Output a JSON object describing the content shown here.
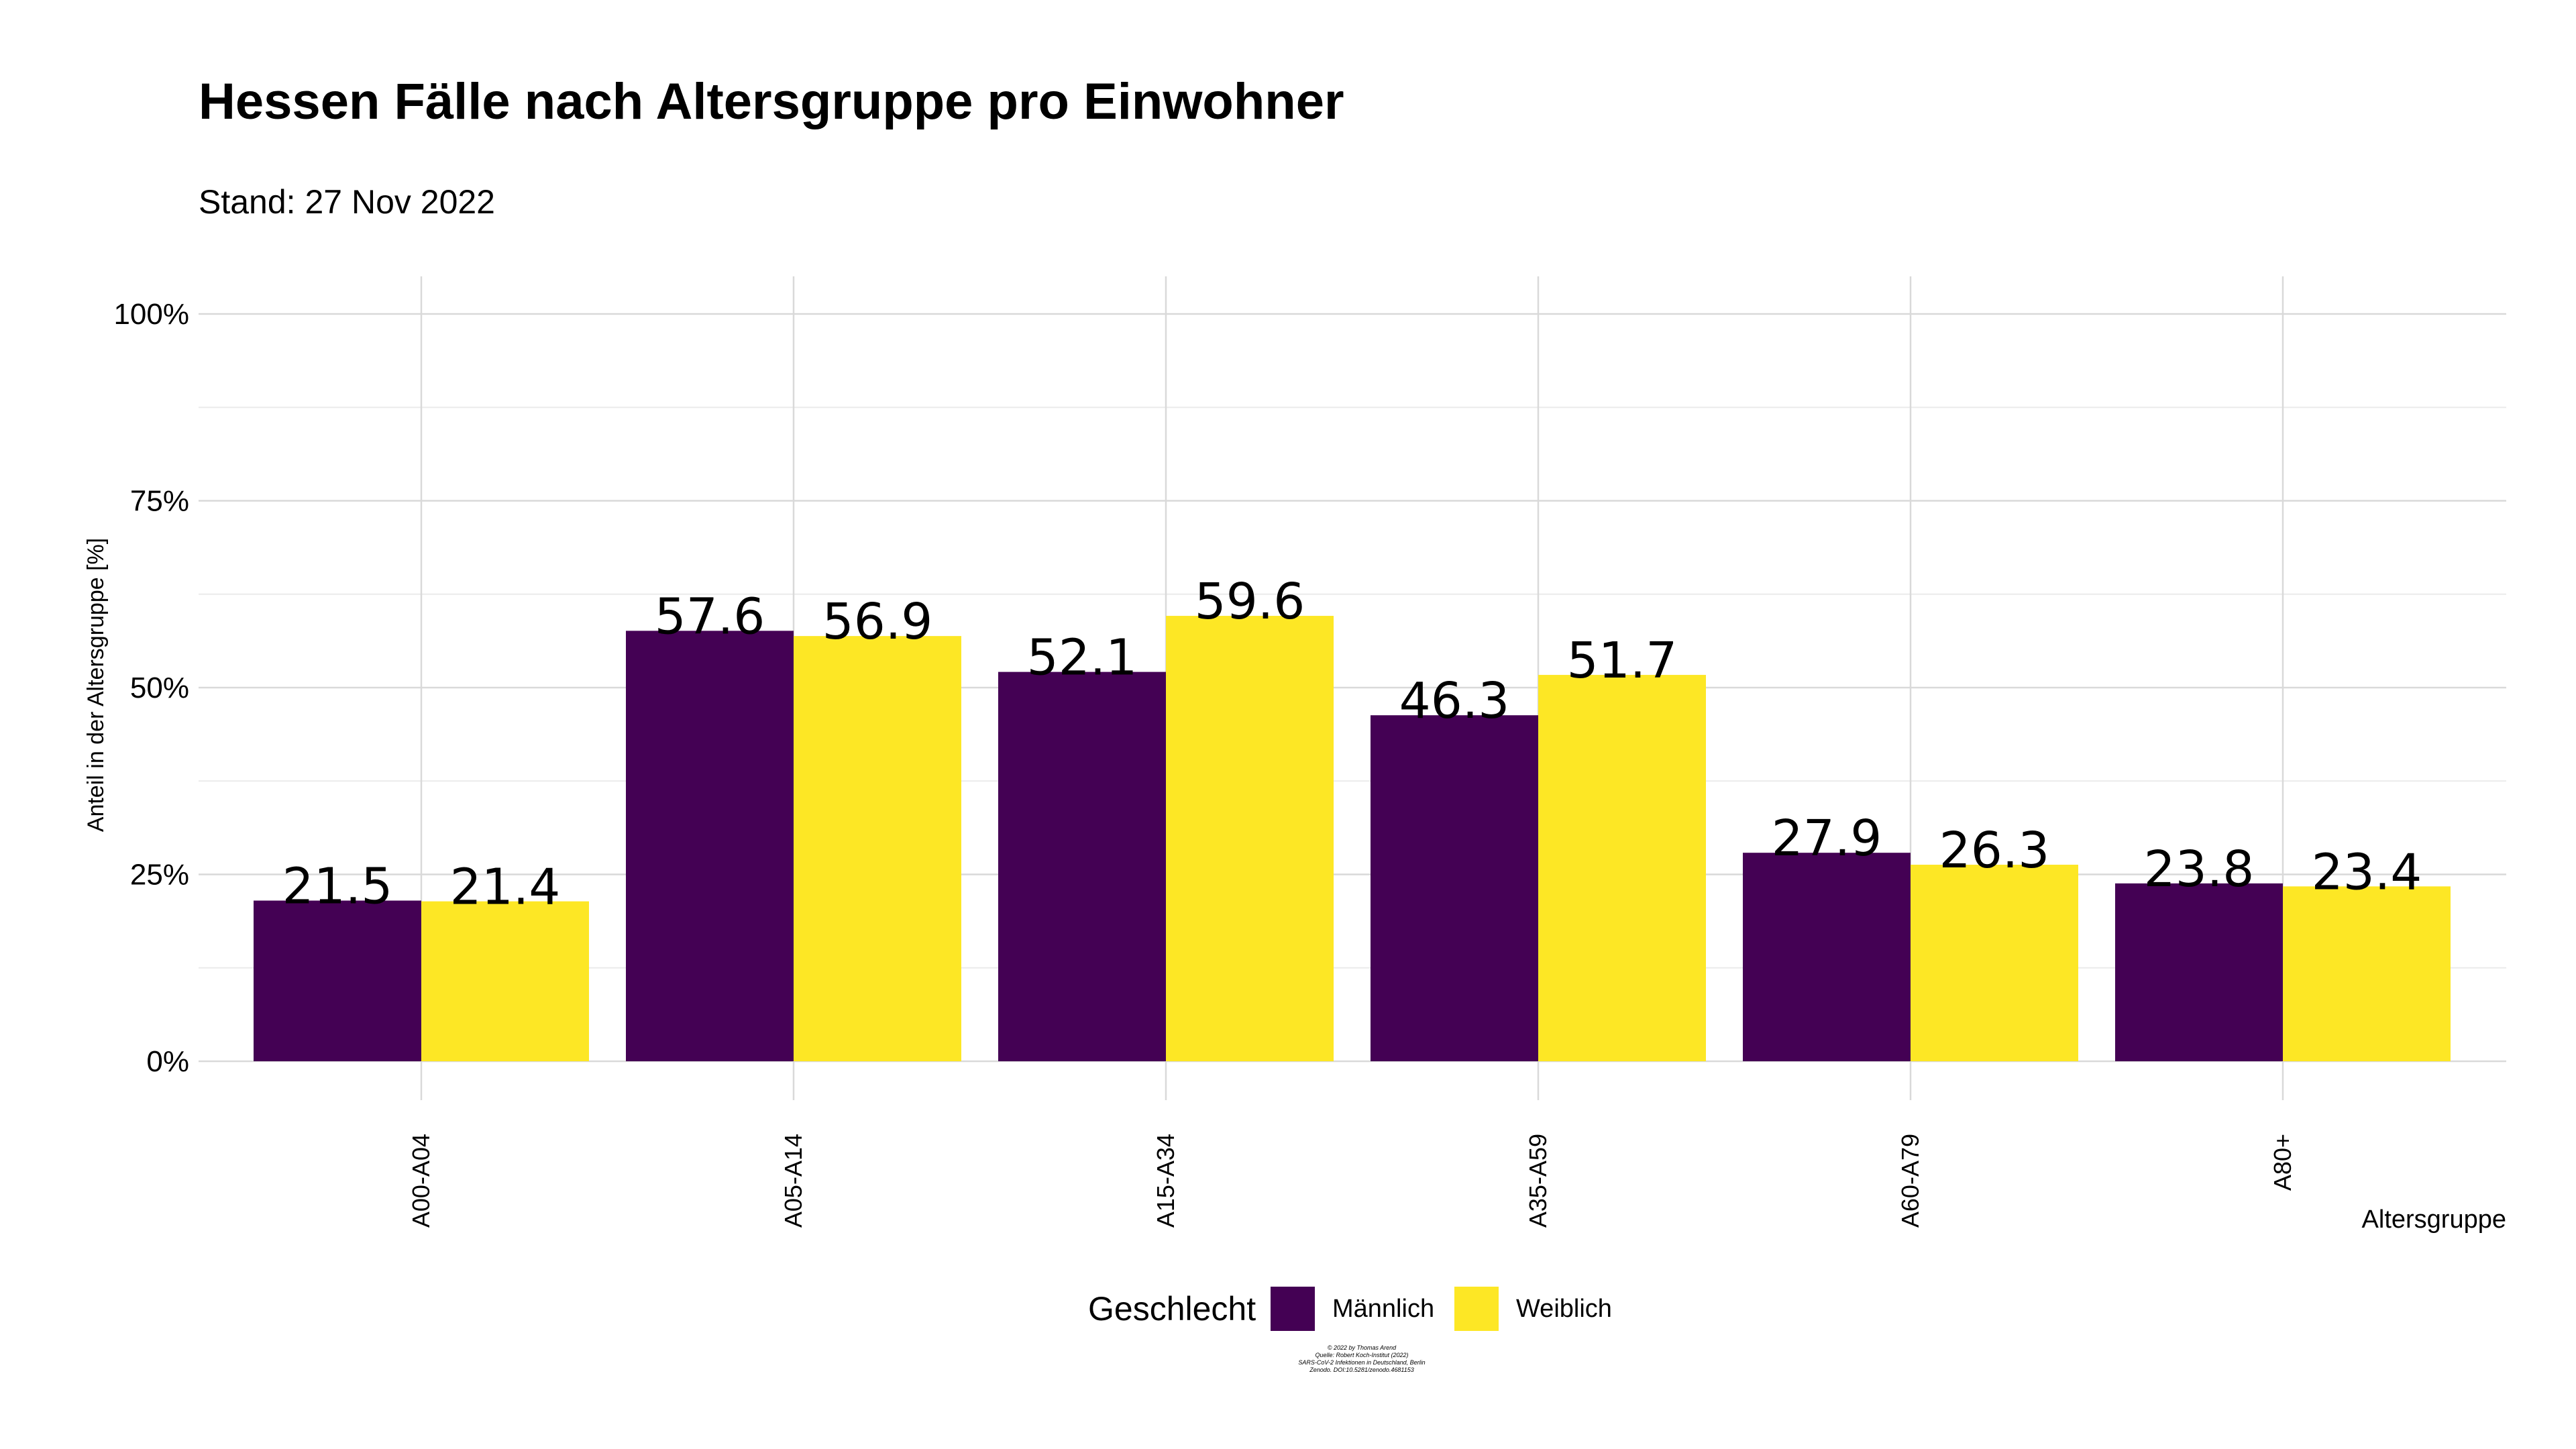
{
  "title": "Hessen Fälle nach Altersgruppe pro Einwohner",
  "subtitle": "Stand: 27 Nov 2022",
  "colors": {
    "maennlich": "#440154",
    "weiblich": "#FDE725",
    "grid": "#d9d9d9",
    "grid_minor": "#ebebeb",
    "text": "#000000"
  },
  "legend": {
    "title": "Geschlecht",
    "items": [
      {
        "label": "Männlich",
        "color": "#440154"
      },
      {
        "label": "Weiblich",
        "color": "#FDE725"
      }
    ],
    "placement": "bottom"
  },
  "credits": [
    "© 2022 by Thomas Arend",
    "Quelle: Robert Koch-Institut (2022)",
    "SARS-CoV-2 Infektionen in Deutschland, Berlin",
    "Zenodo. DOI:10.5281/zenodo.4681153"
  ],
  "chart_data": {
    "type": "bar",
    "title": "Hessen Fälle nach Altersgruppe pro Einwohner",
    "subtitle": "Stand: 27 Nov 2022",
    "xlabel": "Altersgruppe",
    "ylabel": "Anteil in der Altersgruppe [%]",
    "categories": [
      "A00-A04",
      "A05-A14",
      "A15-A34",
      "A35-A59",
      "A60-A79",
      "A80+"
    ],
    "series": [
      {
        "name": "Männlich",
        "values": [
          21.5,
          57.6,
          52.1,
          46.3,
          27.9,
          23.8
        ],
        "labels": [
          "21.5",
          "57.6",
          "52.1",
          "46.3",
          "27.9",
          "23.8"
        ]
      },
      {
        "name": "Weiblich",
        "values": [
          21.4,
          56.9,
          59.6,
          51.7,
          26.3,
          23.4
        ],
        "labels": [
          "21.4",
          "56.9",
          "59.6",
          "51.7",
          "26.3",
          "23.4"
        ]
      }
    ],
    "ylim": [
      0,
      100
    ],
    "yticks": [
      0,
      25,
      50,
      75,
      100
    ],
    "ytick_labels": [
      "0%",
      "25%",
      "50%",
      "75%",
      "100%"
    ],
    "grid": true
  }
}
